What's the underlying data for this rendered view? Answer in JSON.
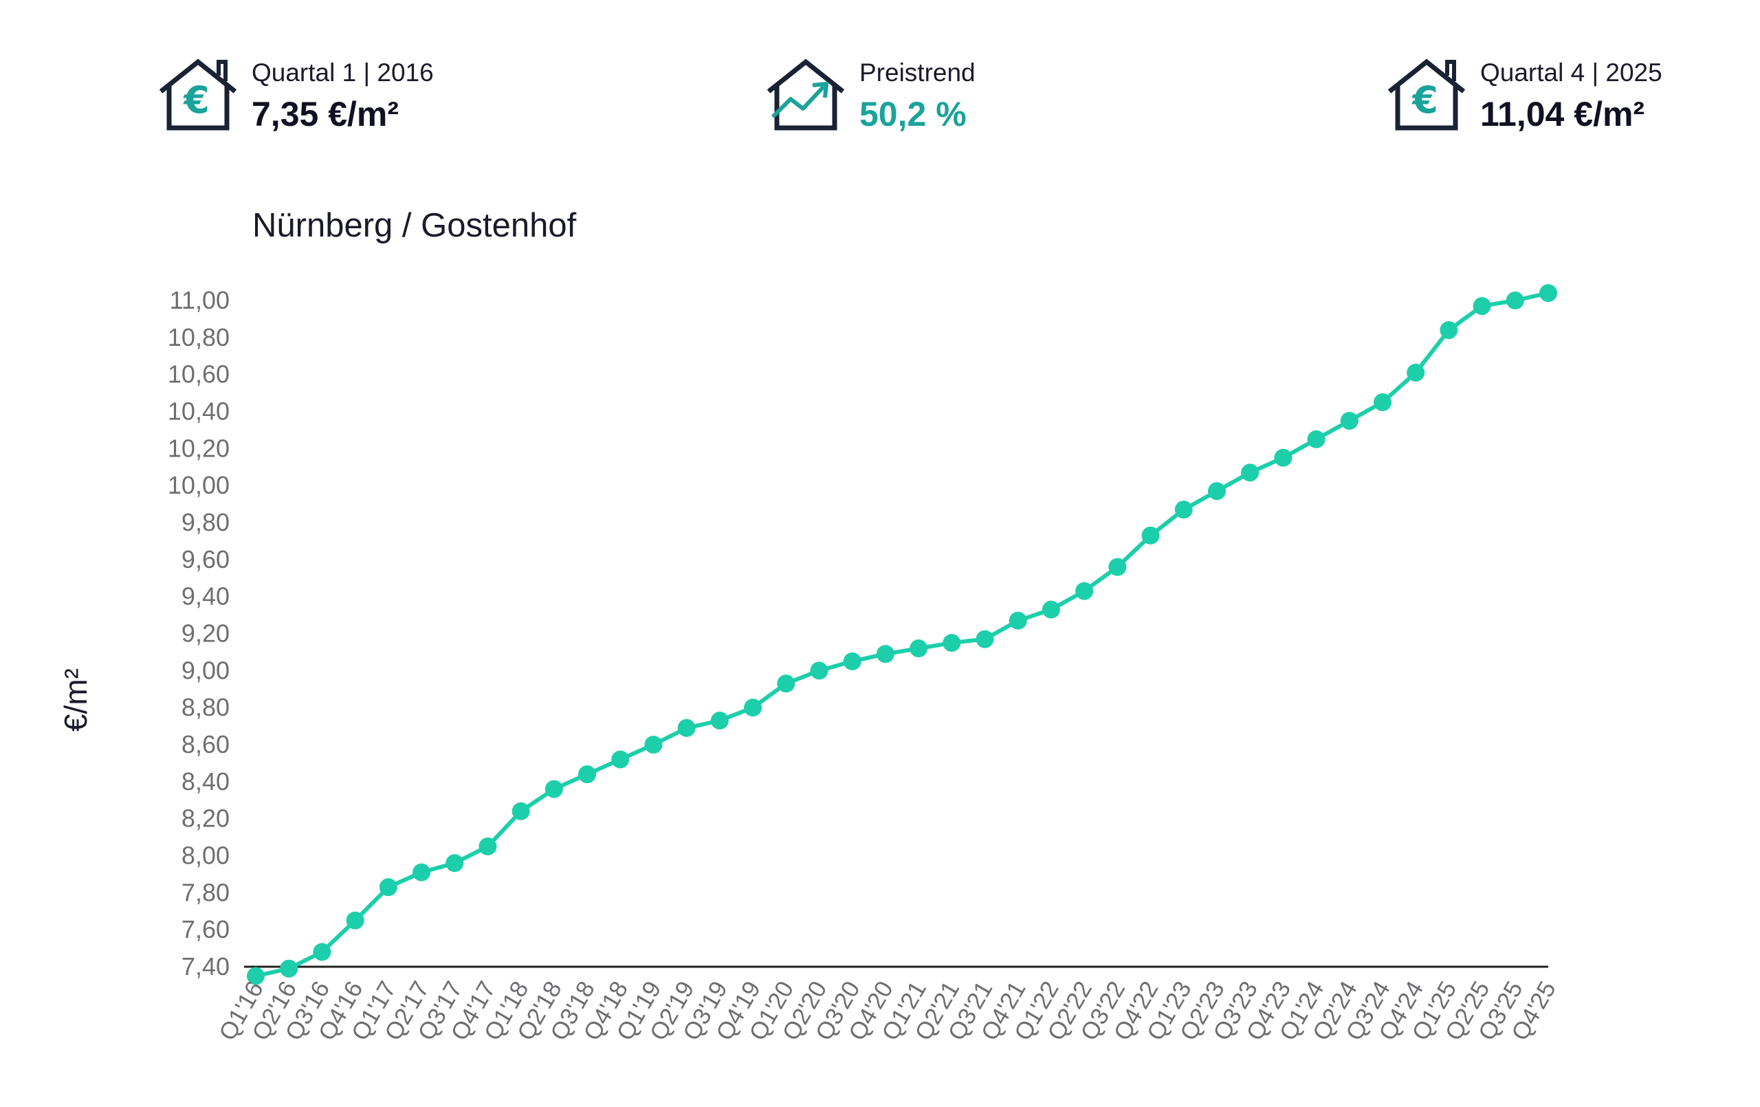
{
  "kpis": {
    "start": {
      "label": "Quartal 1 | 2016",
      "value": "7,35 €/m²",
      "icon": "house-euro-icon"
    },
    "trend": {
      "label": "Preistrend",
      "value": "50,2 %",
      "icon": "house-trend-icon"
    },
    "end": {
      "label": "Quartal 4 | 2025",
      "value": "11,04 €/m²",
      "icon": "house-euro-icon"
    }
  },
  "colors": {
    "line": "#1ccfaa",
    "accent": "#1aa39a",
    "icon_dark": "#1a2233",
    "axis": "#222222"
  },
  "chart_data": {
    "type": "line",
    "title": "Nürnberg / Gostenhof",
    "ylabel": "€/m²",
    "xlabel": "",
    "ylim": [
      7.4,
      11.0
    ],
    "y_ticks": [
      "7,40",
      "7,60",
      "7,80",
      "8,00",
      "8,20",
      "8,40",
      "8,60",
      "8,80",
      "9,00",
      "9,20",
      "9,40",
      "9,60",
      "9,80",
      "10,00",
      "10,20",
      "10,40",
      "10,60",
      "10,80",
      "11,00"
    ],
    "y_tick_values": [
      7.4,
      7.6,
      7.8,
      8.0,
      8.2,
      8.4,
      8.6,
      8.8,
      9.0,
      9.2,
      9.4,
      9.6,
      9.8,
      10.0,
      10.2,
      10.4,
      10.6,
      10.8,
      11.0
    ],
    "grid": false,
    "categories": [
      "Q1'16",
      "Q2'16",
      "Q3'16",
      "Q4'16",
      "Q1'17",
      "Q2'17",
      "Q3'17",
      "Q4'17",
      "Q1'18",
      "Q2'18",
      "Q3'18",
      "Q4'18",
      "Q1'19",
      "Q2'19",
      "Q3'19",
      "Q4'19",
      "Q1'20",
      "Q2'20",
      "Q3'20",
      "Q4'20",
      "Q1'21",
      "Q2'21",
      "Q3'21",
      "Q4'21",
      "Q1'22",
      "Q2'22",
      "Q3'22",
      "Q4'22",
      "Q1'23",
      "Q2'23",
      "Q3'23",
      "Q4'23",
      "Q1'24",
      "Q2'24",
      "Q3'24",
      "Q4'24",
      "Q1'25",
      "Q2'25",
      "Q3'25",
      "Q4'25"
    ],
    "values": [
      7.35,
      7.39,
      7.48,
      7.65,
      7.83,
      7.91,
      7.96,
      8.05,
      8.24,
      8.36,
      8.44,
      8.52,
      8.6,
      8.69,
      8.73,
      8.8,
      8.93,
      9.0,
      9.05,
      9.09,
      9.12,
      9.15,
      9.17,
      9.27,
      9.33,
      9.43,
      9.56,
      9.73,
      9.87,
      9.97,
      10.07,
      10.15,
      10.25,
      10.35,
      10.45,
      10.61,
      10.84,
      10.97,
      11.0,
      11.04
    ]
  }
}
